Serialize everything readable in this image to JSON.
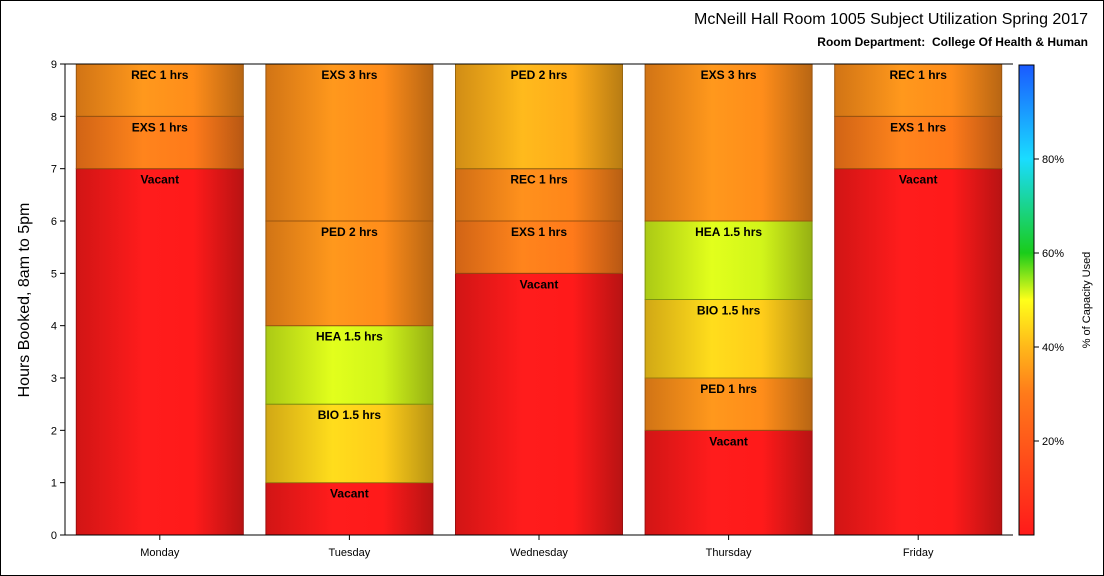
{
  "chart_data": {
    "type": "bar",
    "stacked": true,
    "title": "McNeill Hall Room 1005 Subject Utilization Spring 2017",
    "subtitle": "Room Department:  College Of Health & Human",
    "xlabel": "",
    "ylabel": "Hours Booked, 8am to 5pm",
    "ylim": [
      0,
      9
    ],
    "yticks": [
      0,
      1,
      2,
      3,
      4,
      5,
      6,
      7,
      8,
      9
    ],
    "categories": [
      "Monday",
      "Tuesday",
      "Wednesday",
      "Thursday",
      "Friday"
    ],
    "bars": [
      {
        "category": "Monday",
        "segments": [
          {
            "label": "Vacant",
            "start": 0,
            "end": 7,
            "pct_used": 0
          },
          {
            "label": "EXS 1 hrs",
            "start": 7,
            "end": 8,
            "pct_used": 30
          },
          {
            "label": "REC 1 hrs",
            "start": 8,
            "end": 9,
            "pct_used": 33
          }
        ]
      },
      {
        "category": "Tuesday",
        "segments": [
          {
            "label": "Vacant",
            "start": 0,
            "end": 1,
            "pct_used": 0
          },
          {
            "label": "BIO 1.5 hrs",
            "start": 1,
            "end": 2.5,
            "pct_used": 43
          },
          {
            "label": "HEA 1.5 hrs",
            "start": 2.5,
            "end": 4,
            "pct_used": 52
          },
          {
            "label": "PED 2 hrs",
            "start": 4,
            "end": 6,
            "pct_used": 33
          },
          {
            "label": "EXS 3 hrs",
            "start": 6,
            "end": 9,
            "pct_used": 33
          }
        ]
      },
      {
        "category": "Wednesday",
        "segments": [
          {
            "label": "Vacant",
            "start": 0,
            "end": 5,
            "pct_used": 0
          },
          {
            "label": "EXS 1 hrs",
            "start": 5,
            "end": 6,
            "pct_used": 30
          },
          {
            "label": "REC 1 hrs",
            "start": 6,
            "end": 7,
            "pct_used": 32
          },
          {
            "label": "PED 2 hrs",
            "start": 7,
            "end": 9,
            "pct_used": 38
          }
        ]
      },
      {
        "category": "Thursday",
        "segments": [
          {
            "label": "Vacant",
            "start": 0,
            "end": 2,
            "pct_used": 0
          },
          {
            "label": "PED 1 hrs",
            "start": 2,
            "end": 3,
            "pct_used": 33
          },
          {
            "label": "BIO 1.5 hrs",
            "start": 3,
            "end": 4.5,
            "pct_used": 43
          },
          {
            "label": "HEA 1.5 hrs",
            "start": 4.5,
            "end": 6,
            "pct_used": 52
          },
          {
            "label": "EXS 3 hrs",
            "start": 6,
            "end": 9,
            "pct_used": 33
          }
        ]
      },
      {
        "category": "Friday",
        "segments": [
          {
            "label": "Vacant",
            "start": 0,
            "end": 7,
            "pct_used": 0
          },
          {
            "label": "EXS 1 hrs",
            "start": 7,
            "end": 8,
            "pct_used": 30
          },
          {
            "label": "REC 1 hrs",
            "start": 8,
            "end": 9,
            "pct_used": 33
          }
        ]
      }
    ],
    "colorbar": {
      "title": "% of Capacity Used",
      "range": [
        0,
        100
      ],
      "ticks": [
        {
          "value": 20,
          "label": "20%"
        },
        {
          "value": 40,
          "label": "40%"
        },
        {
          "value": 60,
          "label": "60%"
        },
        {
          "value": 80,
          "label": "80%"
        }
      ],
      "stops": [
        {
          "value": 0,
          "color": "#ff1a1a"
        },
        {
          "value": 30,
          "color": "#ff7a1a"
        },
        {
          "value": 40,
          "color": "#ffb81a"
        },
        {
          "value": 50,
          "color": "#ffff1a"
        },
        {
          "value": 60,
          "color": "#1acc1a"
        },
        {
          "value": 80,
          "color": "#1adcff"
        },
        {
          "value": 100,
          "color": "#1a5aff"
        }
      ]
    }
  }
}
